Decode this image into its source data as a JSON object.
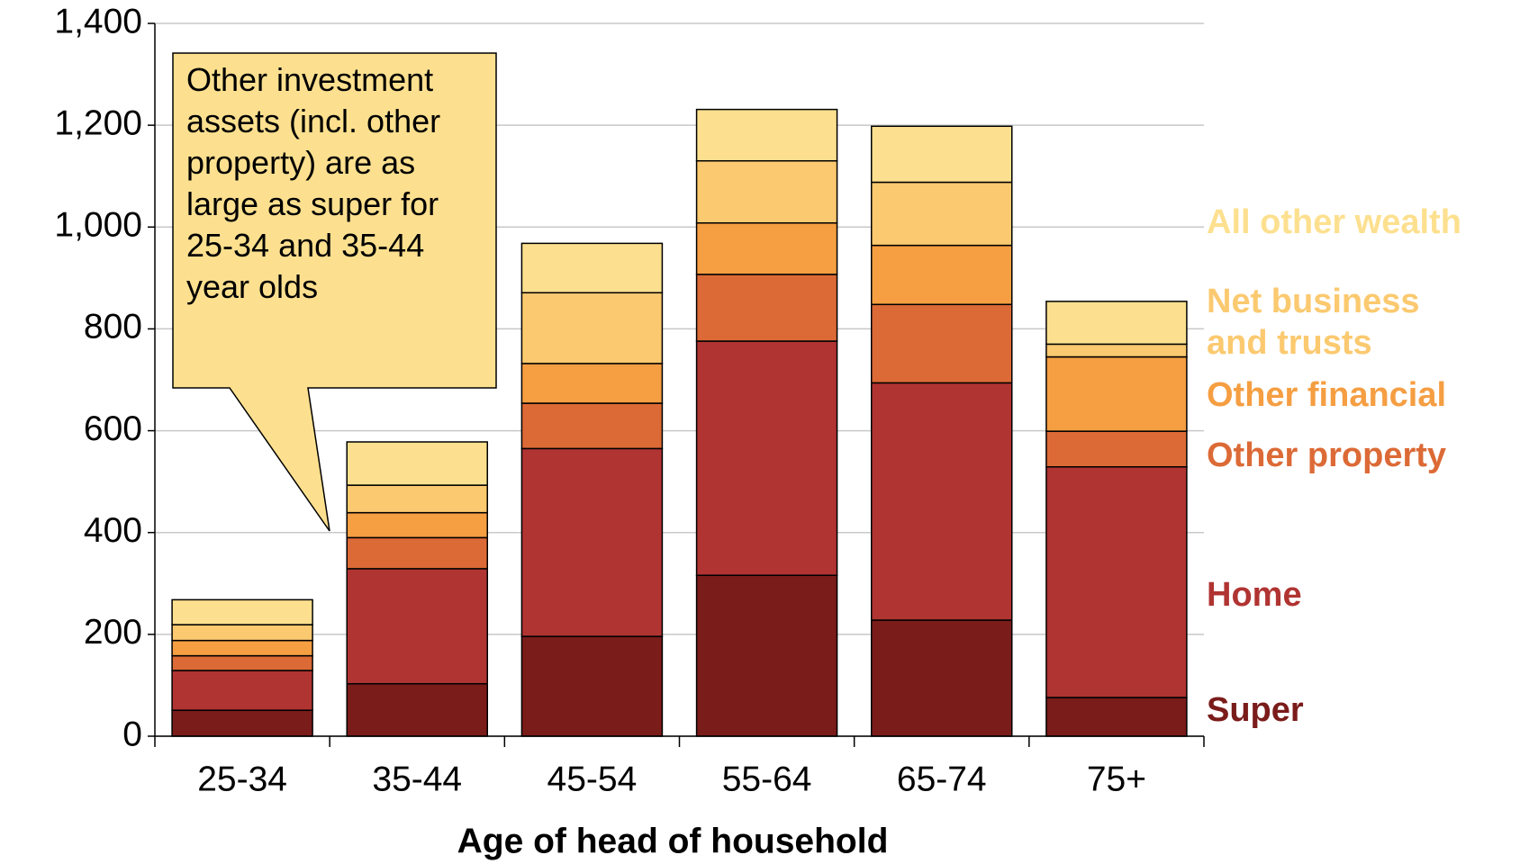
{
  "chart_data": {
    "type": "stacked_bar",
    "x_label": "Age of head of household",
    "annotation": "Other investment assets (incl. other property) are as large as super for 25-34 and 35-44 year olds",
    "categories": [
      "25-34",
      "35-44",
      "45-54",
      "55-64",
      "65-74",
      "75+"
    ],
    "series": [
      {
        "name": "Super",
        "color": "#7a1c1a",
        "values": [
          51,
          103,
          196,
          316,
          228,
          76
        ]
      },
      {
        "name": "Home",
        "color": "#b03432",
        "values": [
          78,
          226,
          369,
          460,
          466,
          453
        ]
      },
      {
        "name": "Other property",
        "color": "#dc6a36",
        "values": [
          29,
          61,
          89,
          131,
          154,
          70
        ]
      },
      {
        "name": "Other financial",
        "color": "#f59e42",
        "values": [
          30,
          49,
          78,
          101,
          116,
          146
        ]
      },
      {
        "name": "Net business and trusts",
        "color": "#fbc96f",
        "values": [
          31,
          54,
          139,
          122,
          124,
          25
        ]
      },
      {
        "name": "All other wealth",
        "color": "#fde08f",
        "values": [
          49,
          85,
          97,
          101,
          110,
          84
        ]
      }
    ],
    "ylim": [
      0,
      1400
    ],
    "yticks": [
      0,
      200,
      400,
      600,
      800,
      {
        "value": 1000,
        "label": "1,000"
      },
      {
        "value": 1200,
        "label": "1,200"
      },
      {
        "value": 1400,
        "label": "1,400"
      }
    ],
    "grid": true
  }
}
